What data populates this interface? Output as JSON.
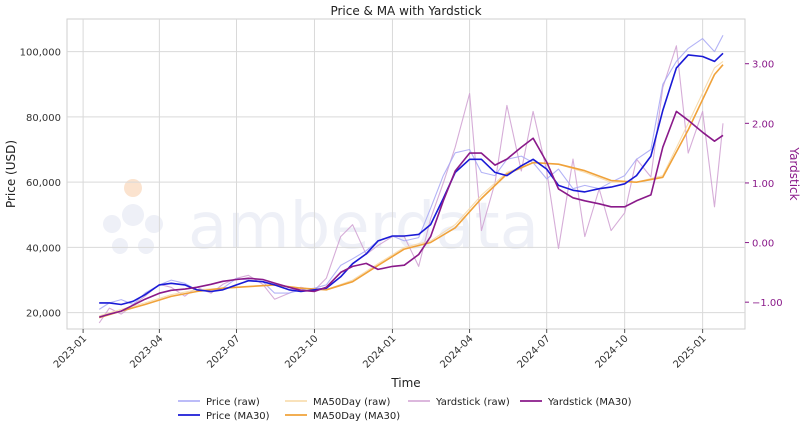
{
  "chart_data": {
    "type": "line",
    "title": "Price & MA with Yardstick",
    "xlabel": "Time",
    "ylabel_left": "Price (USD)",
    "ylabel_right": "Yardstick",
    "x_ticks": [
      "2023-01",
      "2023-04",
      "2023-07",
      "2023-10",
      "2024-01",
      "2024-04",
      "2024-07",
      "2024-10",
      "2025-01"
    ],
    "y_left_ticks": [
      "20,000",
      "40,000",
      "60,000",
      "80,000",
      "100,000"
    ],
    "y_right_ticks": [
      "−1.00",
      "0.00",
      "1.00",
      "2.00",
      "3.00"
    ],
    "ylim_left": [
      15000,
      110000
    ],
    "ylim_right": [
      -1.45,
      3.75
    ],
    "grid": true,
    "legend_position": "bottom-center",
    "watermark": "amberdata",
    "colors": {
      "price_raw": "#a6a6f5",
      "price_ma": "#1a1ad6",
      "ma50_raw": "#f7d9a8",
      "ma50_ma": "#f0a23a",
      "yard_raw": "#cf9fd1",
      "yard_ma": "#8a1a8a"
    },
    "series": [
      {
        "name": "Price (raw)",
        "axis": "left",
        "x": [
          "2023-01-20",
          "2023-02-01",
          "2023-02-15",
          "2023-03-01",
          "2023-03-15",
          "2023-04-01",
          "2023-04-15",
          "2023-05-01",
          "2023-05-15",
          "2023-06-01",
          "2023-06-15",
          "2023-07-01",
          "2023-07-15",
          "2023-08-01",
          "2023-08-15",
          "2023-09-01",
          "2023-09-15",
          "2023-10-01",
          "2023-10-15",
          "2023-11-01",
          "2023-11-15",
          "2023-12-01",
          "2023-12-15",
          "2024-01-01",
          "2024-01-15",
          "2024-02-01",
          "2024-02-15",
          "2024-03-01",
          "2024-03-15",
          "2024-04-01",
          "2024-04-15",
          "2024-05-01",
          "2024-05-15",
          "2024-06-01",
          "2024-06-15",
          "2024-07-01",
          "2024-07-15",
          "2024-08-01",
          "2024-08-15",
          "2024-09-01",
          "2024-09-15",
          "2024-10-01",
          "2024-10-15",
          "2024-11-01",
          "2024-11-15",
          "2024-12-01",
          "2024-12-15",
          "2025-01-01",
          "2025-01-15",
          "2025-01-25"
        ],
        "values": [
          21000,
          23000,
          24000,
          22500,
          26000,
          28500,
          30000,
          29000,
          27000,
          26500,
          27500,
          30500,
          30000,
          29500,
          26000,
          26000,
          27000,
          27500,
          28500,
          34500,
          36500,
          39000,
          42000,
          43500,
          42000,
          43000,
          52000,
          62000,
          69000,
          70000,
          63000,
          62000,
          67000,
          68000,
          66000,
          61000,
          64000,
          58000,
          59000,
          58000,
          60000,
          62000,
          67000,
          70000,
          90000,
          97000,
          101000,
          104000,
          100000,
          105000
        ]
      },
      {
        "name": "Price (MA30)",
        "axis": "left",
        "x": [
          "2023-01-20",
          "2023-02-01",
          "2023-02-15",
          "2023-03-01",
          "2023-03-15",
          "2023-04-01",
          "2023-04-15",
          "2023-05-01",
          "2023-05-15",
          "2023-06-01",
          "2023-06-15",
          "2023-07-01",
          "2023-07-15",
          "2023-08-01",
          "2023-08-15",
          "2023-09-01",
          "2023-09-15",
          "2023-10-01",
          "2023-10-15",
          "2023-11-01",
          "2023-11-15",
          "2023-12-01",
          "2023-12-15",
          "2024-01-01",
          "2024-01-15",
          "2024-02-01",
          "2024-02-15",
          "2024-03-01",
          "2024-03-15",
          "2024-04-01",
          "2024-04-15",
          "2024-05-01",
          "2024-05-15",
          "2024-06-01",
          "2024-06-15",
          "2024-07-01",
          "2024-07-15",
          "2024-08-01",
          "2024-08-15",
          "2024-09-01",
          "2024-09-15",
          "2024-10-01",
          "2024-10-15",
          "2024-11-01",
          "2024-11-15",
          "2024-12-01",
          "2024-12-15",
          "2025-01-01",
          "2025-01-15",
          "2025-01-25"
        ],
        "values": [
          23000,
          23000,
          22500,
          23500,
          25500,
          28500,
          29000,
          28500,
          27000,
          26500,
          27000,
          28500,
          29800,
          29500,
          28500,
          27000,
          26500,
          27000,
          27500,
          31000,
          35000,
          38000,
          42000,
          43500,
          43500,
          44000,
          47000,
          55000,
          63000,
          67000,
          67000,
          63000,
          62000,
          65000,
          67000,
          64000,
          59000,
          57500,
          57000,
          58000,
          58500,
          59500,
          62000,
          68000,
          82000,
          95000,
          99000,
          98500,
          97000,
          99500
        ]
      },
      {
        "name": "MA50Day (raw)",
        "axis": "left",
        "x": [
          "2023-01-20",
          "2023-02-15",
          "2023-03-15",
          "2023-04-15",
          "2023-05-15",
          "2023-06-15",
          "2023-07-15",
          "2023-08-15",
          "2023-09-15",
          "2023-10-15",
          "2023-11-15",
          "2023-12-15",
          "2024-01-15",
          "2024-02-15",
          "2024-03-15",
          "2024-04-15",
          "2024-05-15",
          "2024-06-15",
          "2024-07-15",
          "2024-08-15",
          "2024-09-15",
          "2024-10-15",
          "2024-11-15",
          "2024-12-15",
          "2025-01-15",
          "2025-01-25"
        ],
        "values": [
          19000,
          21000,
          23000,
          25500,
          27000,
          27500,
          28000,
          28500,
          27500,
          27000,
          30000,
          35000,
          40000,
          42000,
          47000,
          56000,
          63000,
          66000,
          65500,
          63000,
          60000,
          60000,
          62000,
          78000,
          95000,
          97000
        ]
      },
      {
        "name": "MA50Day (MA30)",
        "axis": "left",
        "x": [
          "2023-01-20",
          "2023-02-15",
          "2023-03-15",
          "2023-04-15",
          "2023-05-15",
          "2023-06-15",
          "2023-07-15",
          "2023-08-15",
          "2023-09-15",
          "2023-10-15",
          "2023-11-15",
          "2023-12-15",
          "2024-01-15",
          "2024-02-15",
          "2024-03-15",
          "2024-04-15",
          "2024-05-15",
          "2024-06-15",
          "2024-07-15",
          "2024-08-15",
          "2024-09-15",
          "2024-10-15",
          "2024-11-15",
          "2024-12-15",
          "2025-01-15",
          "2025-01-25"
        ],
        "values": [
          18500,
          20500,
          22500,
          25000,
          26500,
          27500,
          28000,
          28500,
          27500,
          27000,
          29500,
          34500,
          39500,
          41500,
          46000,
          55000,
          62500,
          66000,
          65500,
          63500,
          60500,
          60000,
          61500,
          76000,
          93000,
          96000
        ]
      },
      {
        "name": "Yardstick (raw)",
        "axis": "right",
        "x": [
          "2023-01-20",
          "2023-02-01",
          "2023-02-15",
          "2023-03-01",
          "2023-03-15",
          "2023-04-01",
          "2023-04-15",
          "2023-05-01",
          "2023-05-15",
          "2023-06-01",
          "2023-06-15",
          "2023-07-01",
          "2023-07-15",
          "2023-08-01",
          "2023-08-15",
          "2023-09-01",
          "2023-09-15",
          "2023-10-01",
          "2023-10-15",
          "2023-11-01",
          "2023-11-15",
          "2023-12-01",
          "2023-12-15",
          "2024-01-01",
          "2024-01-15",
          "2024-02-01",
          "2024-02-15",
          "2024-03-01",
          "2024-03-15",
          "2024-04-01",
          "2024-04-15",
          "2024-05-01",
          "2024-05-15",
          "2024-06-01",
          "2024-06-15",
          "2024-07-01",
          "2024-07-15",
          "2024-08-01",
          "2024-08-15",
          "2024-09-01",
          "2024-09-15",
          "2024-10-01",
          "2024-10-15",
          "2024-11-01",
          "2024-11-15",
          "2024-12-01",
          "2024-12-15",
          "2025-01-01",
          "2025-01-15",
          "2025-01-25"
        ],
        "values": [
          -1.35,
          -1.1,
          -1.2,
          -1.05,
          -0.9,
          -0.7,
          -0.75,
          -0.9,
          -0.75,
          -0.85,
          -0.7,
          -0.6,
          -0.55,
          -0.7,
          -0.95,
          -0.85,
          -0.75,
          -0.8,
          -0.6,
          0.1,
          0.3,
          -0.2,
          -0.05,
          0.1,
          0.1,
          -0.4,
          0.4,
          1.0,
          1.6,
          2.5,
          0.2,
          1.0,
          2.3,
          1.2,
          2.2,
          1.2,
          -0.1,
          1.4,
          0.1,
          0.9,
          0.2,
          0.5,
          1.4,
          1.1,
          2.6,
          3.3,
          1.5,
          2.2,
          0.6,
          2.0
        ]
      },
      {
        "name": "Yardstick (MA30)",
        "axis": "right",
        "x": [
          "2023-01-20",
          "2023-02-01",
          "2023-02-15",
          "2023-03-01",
          "2023-03-15",
          "2023-04-01",
          "2023-04-15",
          "2023-05-01",
          "2023-05-15",
          "2023-06-01",
          "2023-06-15",
          "2023-07-01",
          "2023-07-15",
          "2023-08-01",
          "2023-08-15",
          "2023-09-01",
          "2023-09-15",
          "2023-10-01",
          "2023-10-15",
          "2023-11-01",
          "2023-11-15",
          "2023-12-01",
          "2023-12-15",
          "2024-01-01",
          "2024-01-15",
          "2024-02-01",
          "2024-02-15",
          "2024-03-01",
          "2024-03-15",
          "2024-04-01",
          "2024-04-15",
          "2024-05-01",
          "2024-05-15",
          "2024-06-01",
          "2024-06-15",
          "2024-07-01",
          "2024-07-15",
          "2024-08-01",
          "2024-08-15",
          "2024-09-01",
          "2024-09-15",
          "2024-10-01",
          "2024-10-15",
          "2024-11-01",
          "2024-11-15",
          "2024-12-01",
          "2024-12-15",
          "2025-01-01",
          "2025-01-15",
          "2025-01-25"
        ],
        "values": [
          -1.25,
          -1.2,
          -1.15,
          -1.05,
          -0.95,
          -0.85,
          -0.8,
          -0.78,
          -0.75,
          -0.7,
          -0.65,
          -0.62,
          -0.6,
          -0.62,
          -0.68,
          -0.75,
          -0.8,
          -0.82,
          -0.75,
          -0.5,
          -0.4,
          -0.35,
          -0.45,
          -0.4,
          -0.38,
          -0.2,
          0.1,
          0.7,
          1.2,
          1.5,
          1.5,
          1.3,
          1.4,
          1.6,
          1.75,
          1.35,
          0.9,
          0.75,
          0.7,
          0.65,
          0.6,
          0.6,
          0.7,
          0.8,
          1.6,
          2.2,
          2.05,
          1.85,
          1.7,
          1.8
        ]
      }
    ]
  }
}
